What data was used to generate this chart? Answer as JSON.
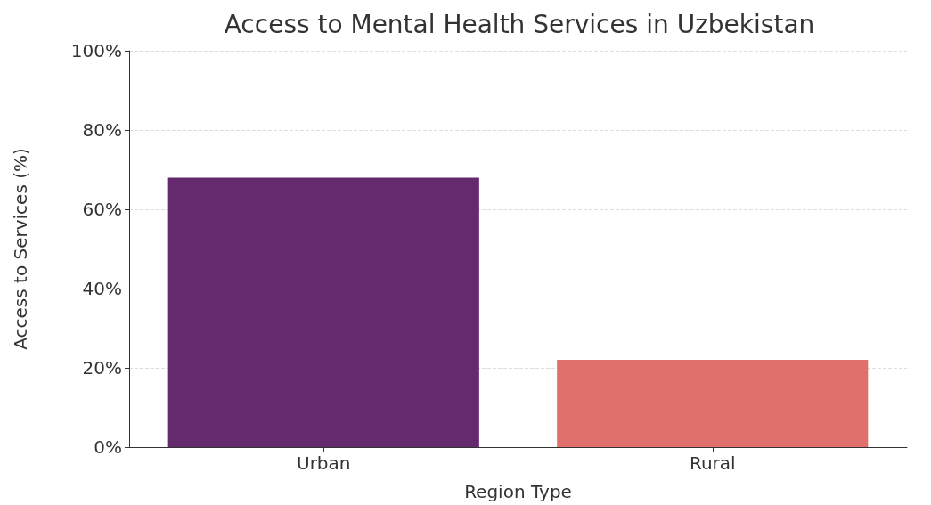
{
  "chart_data": {
    "type": "bar",
    "title": "Access to Mental Health Services in Uzbekistan",
    "xlabel": "Region Type",
    "ylabel": "Access to Services (%)",
    "categories": [
      "Urban",
      "Rural"
    ],
    "values": [
      68,
      22
    ],
    "colors": [
      "#652a6e",
      "#e0706b"
    ],
    "ylim": [
      0,
      100
    ],
    "yticks": [
      {
        "value": 0,
        "label": "0%"
      },
      {
        "value": 20,
        "label": "20%"
      },
      {
        "value": 40,
        "label": "40%"
      },
      {
        "value": 60,
        "label": "60%"
      },
      {
        "value": 80,
        "label": "80%"
      },
      {
        "value": 100,
        "label": "100%"
      }
    ],
    "grid": "y"
  }
}
